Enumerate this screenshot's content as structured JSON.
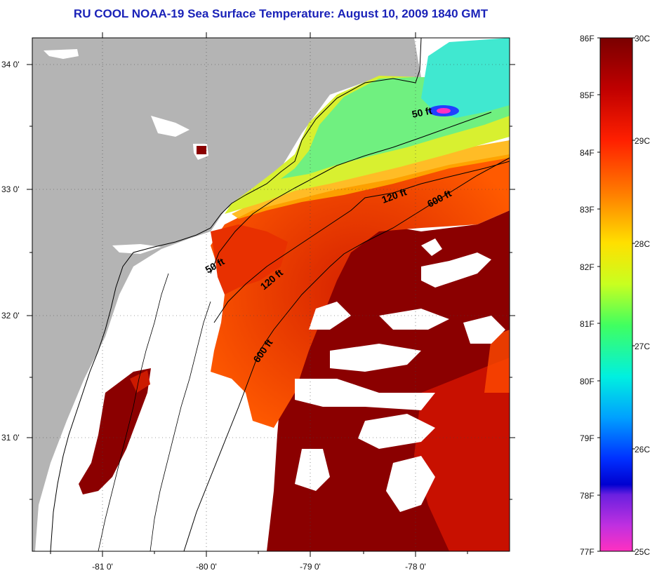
{
  "title": "RU COOL  NOAA-19  Sea Surface Temperature:  August 10, 2009 1840 GMT",
  "map": {
    "lat_ticks": [
      "34 0'",
      "33 0'",
      "32 0'",
      "31 0'"
    ],
    "lon_ticks": [
      "-81 0'",
      "-80 0'",
      "-79 0'",
      "-78 0'"
    ],
    "contour_labels": [
      "50 ft",
      "120 ft",
      "600 ft",
      "50 ft",
      "120 ft",
      "600 ft"
    ]
  },
  "colorbar": {
    "fahrenheit_labels": [
      "86F",
      "85F",
      "84F",
      "83F",
      "82F",
      "81F",
      "80F",
      "79F",
      "78F",
      "77F"
    ],
    "celsius_labels": [
      "30C",
      "29C",
      "28C",
      "27C",
      "26C",
      "25C"
    ]
  },
  "colors": {
    "title": "#1a22b8",
    "land": "#b4b4b4",
    "cloud": "#ffffff",
    "hot": "#8b0000"
  }
}
